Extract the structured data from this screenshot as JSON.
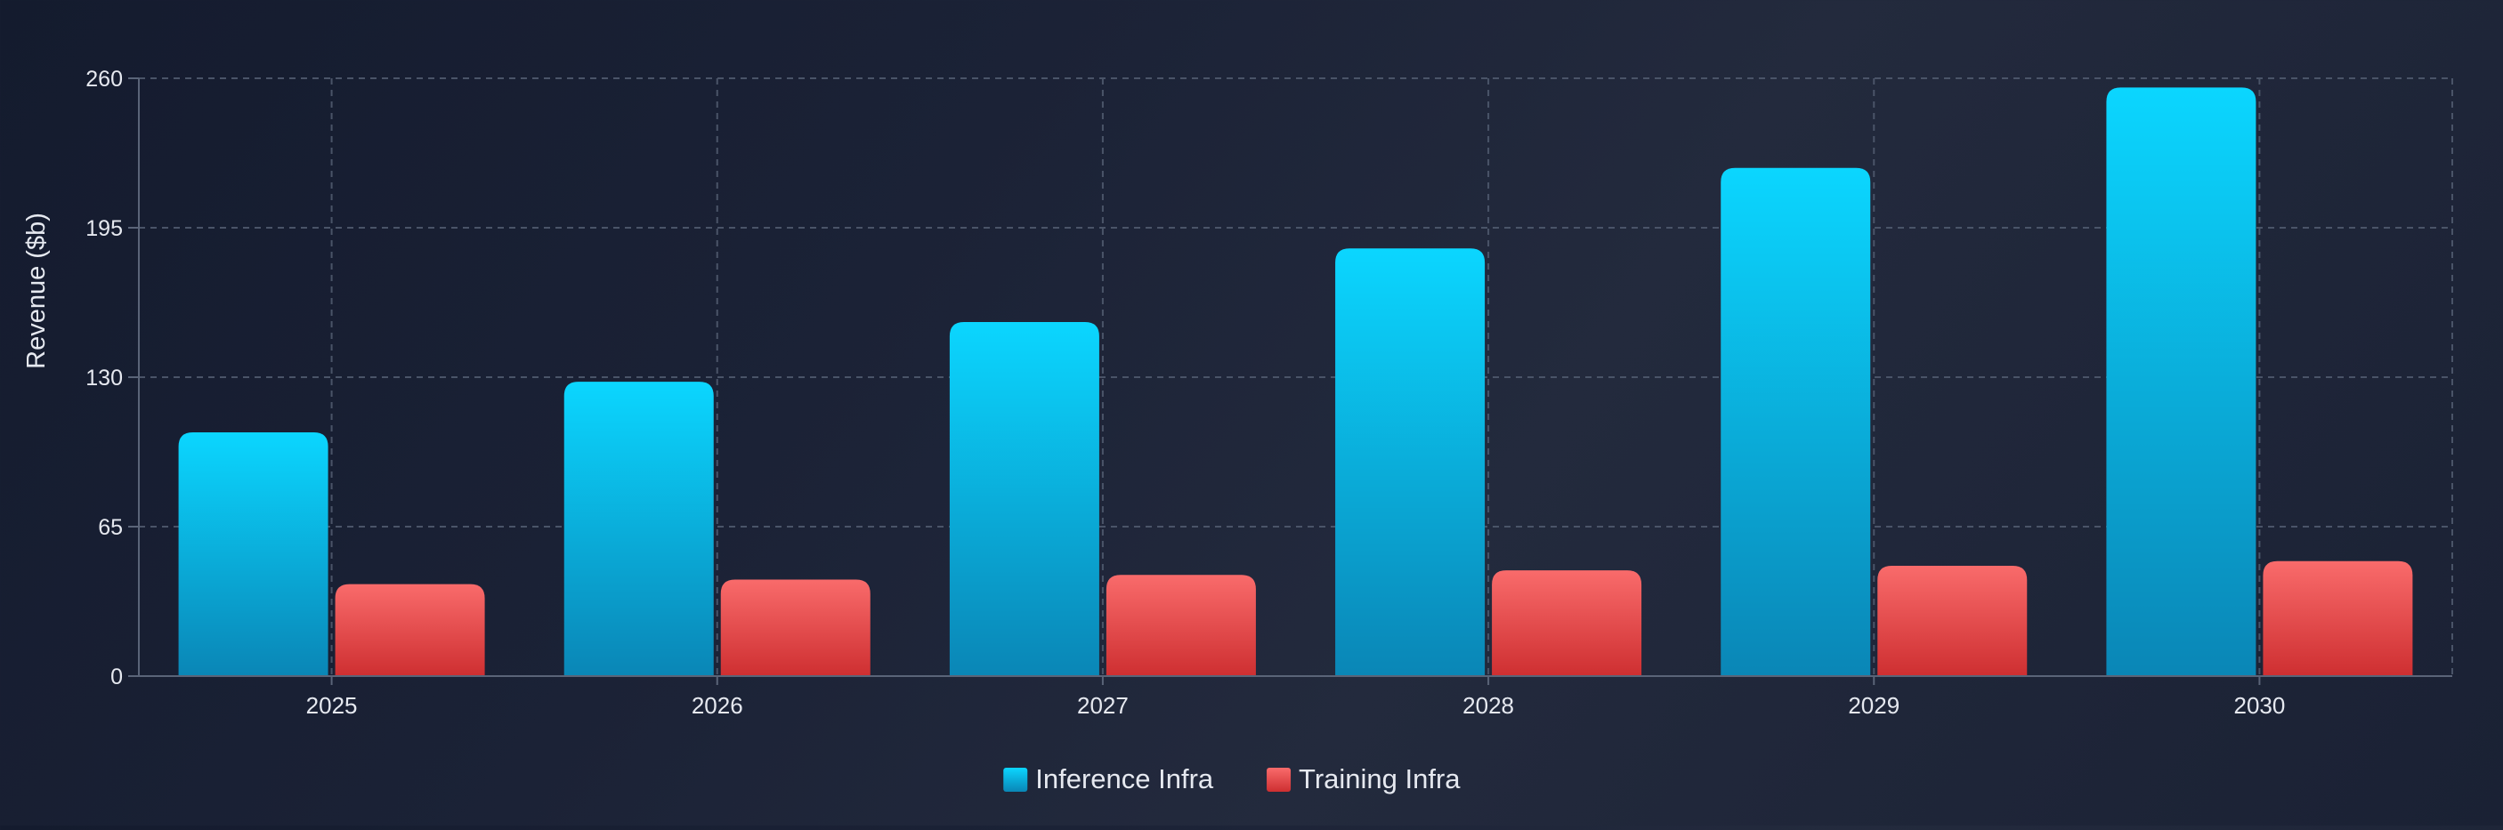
{
  "chart_data": {
    "type": "bar",
    "title": "",
    "xlabel": "",
    "ylabel": "Revenue ($b)",
    "categories": [
      "2025",
      "2026",
      "2027",
      "2028",
      "2029",
      "2030"
    ],
    "series": [
      {
        "name": "Inference Infra",
        "values": [
          106,
          128,
          154,
          186,
          221,
          256
        ]
      },
      {
        "name": "Training Infra",
        "values": [
          40,
          42,
          44,
          46,
          48,
          50
        ]
      }
    ],
    "ylim": [
      0,
      260
    ],
    "yticks": [
      "0",
      "65",
      "130",
      "195",
      "260"
    ],
    "grid": true,
    "legend_position": "bottom-center",
    "colors": {
      "inference_top": "#0bd6ff",
      "inference_bottom": "#0a86b6",
      "training_top": "#f96b6b",
      "training_bottom": "#ce2f31",
      "grid": "#4a5468",
      "axis": "#5a6478",
      "text": "#e6e9f0"
    }
  }
}
